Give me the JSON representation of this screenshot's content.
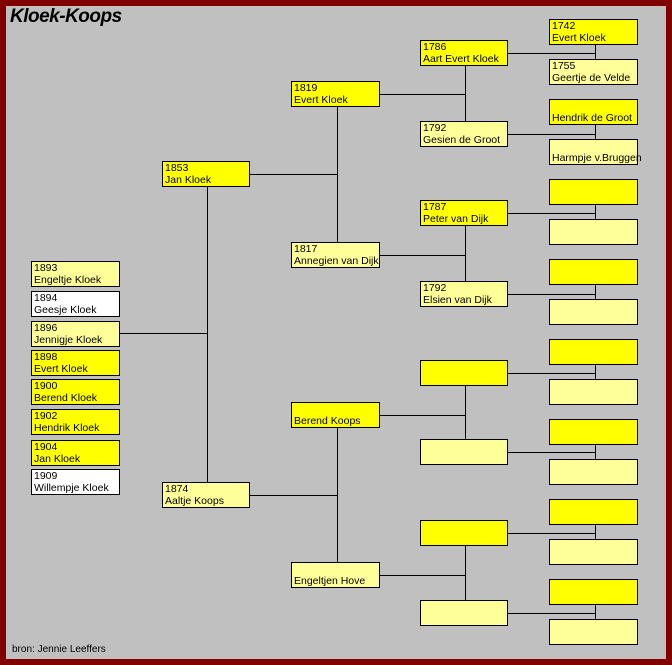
{
  "title": "Kloek-Koops",
  "footer": "bron: Jennie Leeffers",
  "colors": {
    "border": "#800000",
    "background": "#c0c0c0",
    "male": "#ffff00",
    "female": "#ffff99",
    "other": "#ffffff"
  },
  "children": [
    {
      "year": "1893",
      "name": "Engeltje Kloek",
      "color": "female"
    },
    {
      "year": "1894",
      "name": "Geesje Kloek",
      "color": "other"
    },
    {
      "year": "1896",
      "name": "Jennigje Kloek",
      "color": "female"
    },
    {
      "year": "1898",
      "name": "Evert Kloek",
      "color": "male"
    },
    {
      "year": "1900",
      "name": "Berend Kloek",
      "color": "male"
    },
    {
      "year": "1902",
      "name": "Hendrik Kloek",
      "color": "male"
    },
    {
      "year": "1904",
      "name": "Jan Kloek",
      "color": "male"
    },
    {
      "year": "1909",
      "name": "Willempje Kloek",
      "color": "other"
    }
  ],
  "parents": [
    {
      "year": "1853",
      "name": "Jan Kloek",
      "color": "male"
    },
    {
      "year": "1874",
      "name": "Aaltje Koops",
      "color": "female"
    }
  ],
  "grandparents": [
    {
      "year": "1819",
      "name": "Evert Kloek",
      "color": "male"
    },
    {
      "year": "1817",
      "name": "Annegien van Dijk",
      "color": "female"
    },
    {
      "year": "",
      "name": "Berend Koops",
      "color": "male"
    },
    {
      "year": "",
      "name": "Engeltjen Hove",
      "color": "female"
    }
  ],
  "great_grandparents": [
    {
      "year": "1786",
      "name": "Aart Evert Kloek",
      "color": "male"
    },
    {
      "year": "1792",
      "name": "Gesien de Groot",
      "color": "female"
    },
    {
      "year": "1787",
      "name": "Peter van Dijk",
      "color": "male"
    },
    {
      "year": "1792",
      "name": "Elsien van Dijk",
      "color": "female"
    },
    {
      "year": "",
      "name": "",
      "color": "male"
    },
    {
      "year": "",
      "name": "",
      "color": "female"
    },
    {
      "year": "",
      "name": "",
      "color": "male"
    },
    {
      "year": "",
      "name": "",
      "color": "female"
    }
  ],
  "great_great_grandparents": [
    {
      "year": "1742",
      "name": "Evert Kloek",
      "color": "male"
    },
    {
      "year": "1755",
      "name": "Geertje de Velde",
      "color": "female"
    },
    {
      "year": "",
      "name": "Hendrik de Groot",
      "color": "male"
    },
    {
      "year": "",
      "name": "Harmpje v.Bruggen",
      "color": "female"
    },
    {
      "year": "",
      "name": "",
      "color": "male"
    },
    {
      "year": "",
      "name": "",
      "color": "female"
    },
    {
      "year": "",
      "name": "",
      "color": "male"
    },
    {
      "year": "",
      "name": "",
      "color": "female"
    },
    {
      "year": "",
      "name": "",
      "color": "male"
    },
    {
      "year": "",
      "name": "",
      "color": "female"
    },
    {
      "year": "",
      "name": "",
      "color": "male"
    },
    {
      "year": "",
      "name": "",
      "color": "female"
    },
    {
      "year": "",
      "name": "",
      "color": "male"
    },
    {
      "year": "",
      "name": "",
      "color": "female"
    },
    {
      "year": "",
      "name": "",
      "color": "male"
    },
    {
      "year": "",
      "name": "",
      "color": "female"
    }
  ]
}
